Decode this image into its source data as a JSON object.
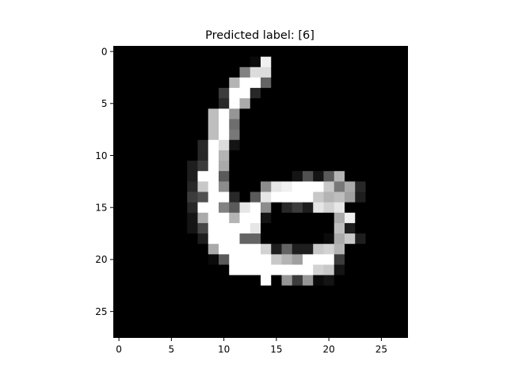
{
  "chart_data": {
    "type": "heatmap",
    "title": "Predicted label: [6]",
    "colormap": "gray",
    "value_range": [
      0,
      255
    ],
    "rows": 28,
    "cols": 28,
    "xlim": [
      -0.5,
      27.5
    ],
    "ylim": [
      27.5,
      -0.5
    ],
    "x_ticks": [
      0,
      5,
      10,
      15,
      20,
      25
    ],
    "y_ticks": [
      0,
      5,
      10,
      15,
      20,
      25
    ],
    "x_tick_labels": [
      "0",
      "5",
      "10",
      "15",
      "20",
      "25"
    ],
    "y_tick_labels": [
      "0",
      "5",
      "10",
      "15",
      "20",
      "25"
    ],
    "grid": false,
    "pixels": [
      [
        0,
        0,
        0,
        0,
        0,
        0,
        0,
        0,
        0,
        0,
        0,
        0,
        0,
        0,
        0,
        0,
        0,
        0,
        0,
        0,
        0,
        0,
        0,
        0,
        0,
        0,
        0,
        0
      ],
      [
        0,
        0,
        0,
        0,
        0,
        0,
        0,
        0,
        0,
        0,
        0,
        0,
        0,
        10,
        240,
        0,
        0,
        0,
        0,
        0,
        0,
        0,
        0,
        0,
        0,
        0,
        0,
        0
      ],
      [
        0,
        0,
        0,
        0,
        0,
        0,
        0,
        0,
        0,
        0,
        0,
        0,
        130,
        220,
        220,
        0,
        0,
        0,
        0,
        0,
        0,
        0,
        0,
        0,
        0,
        0,
        0,
        0
      ],
      [
        0,
        0,
        0,
        0,
        0,
        0,
        0,
        0,
        0,
        0,
        0,
        180,
        255,
        255,
        100,
        0,
        0,
        0,
        0,
        0,
        0,
        0,
        0,
        0,
        0,
        0,
        0,
        0
      ],
      [
        0,
        0,
        0,
        0,
        0,
        0,
        0,
        0,
        0,
        0,
        60,
        255,
        255,
        40,
        0,
        0,
        0,
        0,
        0,
        0,
        0,
        0,
        0,
        0,
        0,
        0,
        0,
        0
      ],
      [
        0,
        0,
        0,
        0,
        0,
        0,
        0,
        0,
        0,
        0,
        40,
        255,
        170,
        0,
        0,
        0,
        0,
        0,
        0,
        0,
        0,
        0,
        0,
        0,
        0,
        0,
        0,
        0
      ],
      [
        0,
        0,
        0,
        0,
        0,
        0,
        0,
        0,
        0,
        190,
        255,
        150,
        0,
        0,
        0,
        0,
        0,
        0,
        0,
        0,
        0,
        0,
        0,
        0,
        0,
        0,
        0,
        0
      ],
      [
        0,
        0,
        0,
        0,
        0,
        0,
        0,
        0,
        0,
        190,
        255,
        110,
        0,
        0,
        0,
        0,
        0,
        0,
        0,
        0,
        0,
        0,
        0,
        0,
        0,
        0,
        0,
        0
      ],
      [
        0,
        0,
        0,
        0,
        0,
        0,
        0,
        0,
        0,
        190,
        255,
        120,
        0,
        0,
        0,
        0,
        0,
        0,
        0,
        0,
        0,
        0,
        0,
        0,
        0,
        0,
        0,
        0
      ],
      [
        0,
        0,
        0,
        0,
        0,
        0,
        0,
        0,
        40,
        255,
        220,
        20,
        0,
        0,
        0,
        0,
        0,
        0,
        0,
        0,
        0,
        0,
        0,
        0,
        0,
        0,
        0,
        0
      ],
      [
        0,
        0,
        0,
        0,
        0,
        0,
        0,
        0,
        40,
        255,
        180,
        0,
        0,
        0,
        0,
        0,
        0,
        0,
        0,
        0,
        0,
        0,
        0,
        0,
        0,
        0,
        0,
        0
      ],
      [
        0,
        0,
        0,
        0,
        0,
        0,
        0,
        30,
        60,
        255,
        170,
        0,
        0,
        0,
        0,
        0,
        0,
        0,
        0,
        0,
        0,
        0,
        0,
        0,
        0,
        0,
        0,
        0
      ],
      [
        0,
        0,
        0,
        0,
        0,
        0,
        0,
        30,
        255,
        255,
        90,
        0,
        0,
        0,
        0,
        0,
        0,
        20,
        80,
        20,
        90,
        180,
        0,
        0,
        0,
        0,
        0,
        0
      ],
      [
        0,
        0,
        0,
        0,
        0,
        0,
        0,
        40,
        200,
        255,
        140,
        0,
        0,
        0,
        140,
        230,
        240,
        255,
        255,
        255,
        200,
        120,
        170,
        40,
        0,
        0,
        0,
        0
      ],
      [
        0,
        0,
        0,
        0,
        0,
        0,
        0,
        60,
        80,
        255,
        255,
        40,
        0,
        90,
        230,
        255,
        255,
        255,
        255,
        200,
        180,
        190,
        160,
        30,
        0,
        0,
        0,
        0
      ],
      [
        0,
        0,
        0,
        0,
        0,
        0,
        0,
        40,
        255,
        255,
        130,
        90,
        230,
        255,
        140,
        0,
        40,
        60,
        30,
        230,
        210,
        230,
        0,
        0,
        0,
        0,
        0,
        0
      ],
      [
        0,
        0,
        0,
        0,
        0,
        0,
        0,
        20,
        170,
        255,
        255,
        180,
        255,
        255,
        20,
        0,
        0,
        0,
        0,
        0,
        0,
        170,
        240,
        0,
        0,
        0,
        0,
        0
      ],
      [
        0,
        0,
        0,
        0,
        0,
        0,
        0,
        20,
        70,
        255,
        255,
        255,
        255,
        230,
        0,
        0,
        0,
        0,
        0,
        0,
        0,
        190,
        30,
        0,
        0,
        0,
        0,
        0
      ],
      [
        0,
        0,
        0,
        0,
        0,
        0,
        0,
        0,
        30,
        255,
        255,
        255,
        100,
        100,
        0,
        0,
        0,
        0,
        0,
        0,
        10,
        170,
        200,
        30,
        0,
        0,
        0,
        0
      ],
      [
        0,
        0,
        0,
        0,
        0,
        0,
        0,
        0,
        0,
        170,
        255,
        255,
        255,
        255,
        210,
        30,
        100,
        30,
        30,
        200,
        210,
        180,
        0,
        0,
        0,
        0,
        0,
        0
      ],
      [
        0,
        0,
        0,
        0,
        0,
        0,
        0,
        0,
        0,
        10,
        90,
        255,
        255,
        255,
        255,
        200,
        180,
        160,
        255,
        255,
        255,
        60,
        0,
        0,
        0,
        0,
        0,
        0
      ],
      [
        0,
        0,
        0,
        0,
        0,
        0,
        0,
        0,
        0,
        0,
        0,
        255,
        255,
        255,
        255,
        255,
        255,
        255,
        255,
        210,
        200,
        20,
        0,
        0,
        0,
        0,
        0,
        0
      ],
      [
        0,
        0,
        0,
        0,
        0,
        0,
        0,
        0,
        0,
        0,
        0,
        0,
        0,
        0,
        255,
        0,
        150,
        60,
        150,
        10,
        20,
        0,
        0,
        0,
        0,
        0,
        0,
        0
      ],
      [
        0,
        0,
        0,
        0,
        0,
        0,
        0,
        0,
        0,
        0,
        0,
        0,
        0,
        0,
        0,
        0,
        0,
        0,
        0,
        0,
        0,
        0,
        0,
        0,
        0,
        0,
        0,
        0
      ],
      [
        0,
        0,
        0,
        0,
        0,
        0,
        0,
        0,
        0,
        0,
        0,
        0,
        0,
        0,
        0,
        0,
        0,
        0,
        0,
        0,
        0,
        0,
        0,
        0,
        0,
        0,
        0,
        0
      ],
      [
        0,
        0,
        0,
        0,
        0,
        0,
        0,
        0,
        0,
        0,
        0,
        0,
        0,
        0,
        0,
        0,
        0,
        0,
        0,
        0,
        0,
        0,
        0,
        0,
        0,
        0,
        0,
        0
      ],
      [
        0,
        0,
        0,
        0,
        0,
        0,
        0,
        0,
        0,
        0,
        0,
        0,
        0,
        0,
        0,
        0,
        0,
        0,
        0,
        0,
        0,
        0,
        0,
        0,
        0,
        0,
        0,
        0
      ],
      [
        0,
        0,
        0,
        0,
        0,
        0,
        0,
        0,
        0,
        0,
        0,
        0,
        0,
        0,
        0,
        0,
        0,
        0,
        0,
        0,
        0,
        0,
        0,
        0,
        0,
        0,
        0,
        0
      ]
    ]
  }
}
